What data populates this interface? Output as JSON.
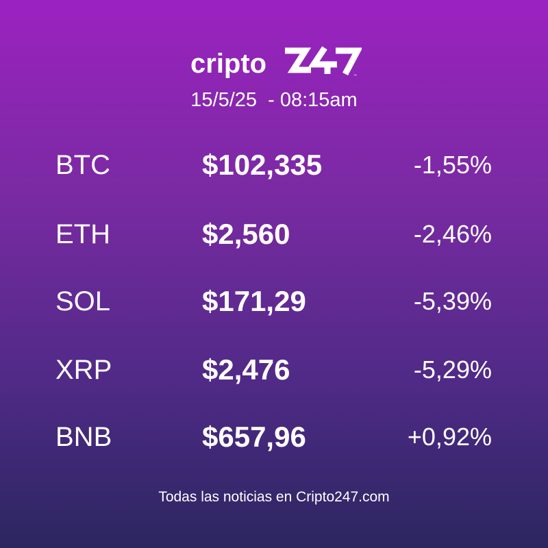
{
  "brand": {
    "wordmark": "cripto",
    "numeral_mark": "247",
    "accent_color": "#ffffff"
  },
  "datetime": "15/5/25  - 08:15am",
  "rows": [
    {
      "symbol": "BTC",
      "price": "$102,335",
      "change": "-1,55%"
    },
    {
      "symbol": "ETH",
      "price": "$2,560",
      "change": "-2,46%"
    },
    {
      "symbol": "SOL",
      "price": "$171,29",
      "change": "-5,39%"
    },
    {
      "symbol": "XRP",
      "price": "$2,476",
      "change": "-5,29%"
    },
    {
      "symbol": "BNB",
      "price": "$657,96",
      "change": "+0,92%"
    }
  ],
  "footer": "Todas las noticias en Cripto247.com",
  "colors": {
    "gradient_top": "#9b22c0",
    "gradient_bottom": "#2b2660",
    "text": "#ffffff"
  }
}
